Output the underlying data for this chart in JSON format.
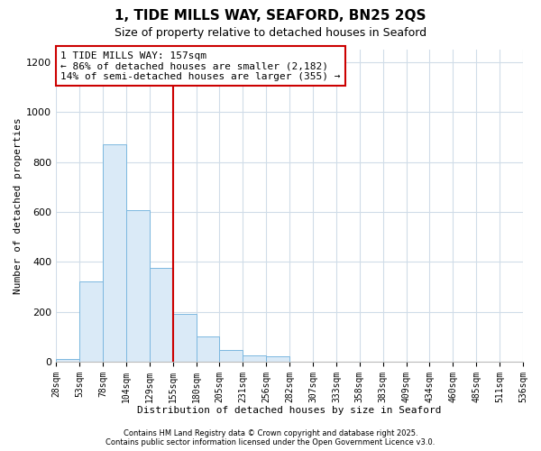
{
  "title_line1": "1, TIDE MILLS WAY, SEAFORD, BN25 2QS",
  "title_line2": "Size of property relative to detached houses in Seaford",
  "bar_values": [
    10,
    320,
    870,
    605,
    375,
    190,
    100,
    45,
    25,
    20,
    0,
    0,
    0,
    0,
    0,
    0,
    0,
    0,
    0,
    0
  ],
  "bin_labels": [
    "28sqm",
    "53sqm",
    "78sqm",
    "104sqm",
    "129sqm",
    "155sqm",
    "180sqm",
    "205sqm",
    "231sqm",
    "256sqm",
    "282sqm",
    "307sqm",
    "333sqm",
    "358sqm",
    "383sqm",
    "409sqm",
    "434sqm",
    "460sqm",
    "485sqm",
    "511sqm",
    "536sqm"
  ],
  "bar_color": "#daeaf7",
  "bar_edge_color": "#7cb8e0",
  "vline_x_index": 5,
  "vline_color": "#cc0000",
  "annotation_title": "1 TIDE MILLS WAY: 157sqm",
  "annotation_line1": "← 86% of detached houses are smaller (2,182)",
  "annotation_line2": "14% of semi-detached houses are larger (355) →",
  "annotation_box_color": "#cc0000",
  "xlabel": "Distribution of detached houses by size in Seaford",
  "ylabel": "Number of detached properties",
  "ylim": [
    0,
    1250
  ],
  "yticks": [
    0,
    200,
    400,
    600,
    800,
    1000,
    1200
  ],
  "grid_color": "#d0dce8",
  "footnote_line1": "Contains HM Land Registry data © Crown copyright and database right 2025.",
  "footnote_line2": "Contains public sector information licensed under the Open Government Licence v3.0.",
  "bg_color": "#ffffff",
  "title_fontsize": 11,
  "subtitle_fontsize": 9,
  "xlabel_fontsize": 8,
  "ylabel_fontsize": 8,
  "tick_fontsize": 7,
  "footnote_fontsize": 6,
  "ann_title_fontsize": 8,
  "ann_body_fontsize": 8
}
